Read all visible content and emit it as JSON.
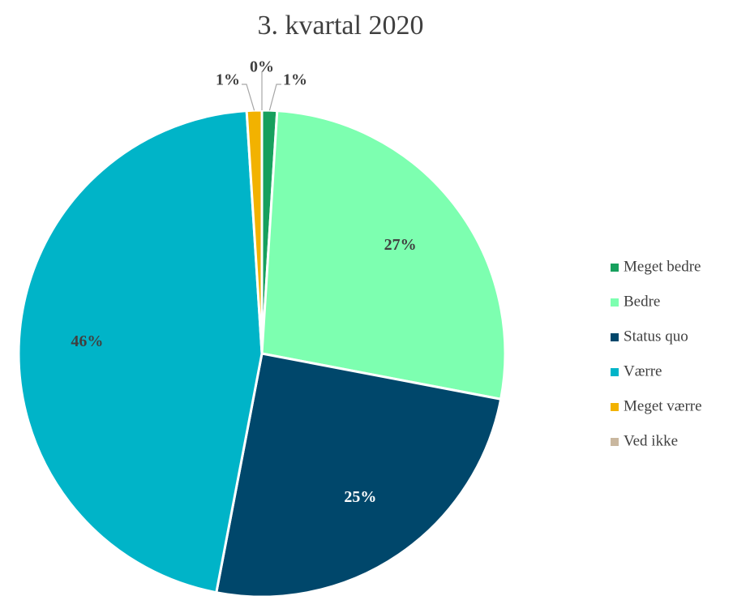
{
  "chart_data": {
    "type": "pie",
    "title": "3. kvartal 2020",
    "categories": [
      "Meget bedre",
      "Bedre",
      "Status quo",
      "Værre",
      "Meget værre",
      "Ved ikke"
    ],
    "values": [
      1,
      27,
      25,
      46,
      1,
      0
    ],
    "value_labels": [
      "1%",
      "27%",
      "25%",
      "46%",
      "1%",
      "0%"
    ],
    "colors": [
      "#17a05d",
      "#7dffb0",
      "#00476b",
      "#00b4c8",
      "#f2b200",
      "#c9b79f"
    ],
    "legend": "right"
  }
}
